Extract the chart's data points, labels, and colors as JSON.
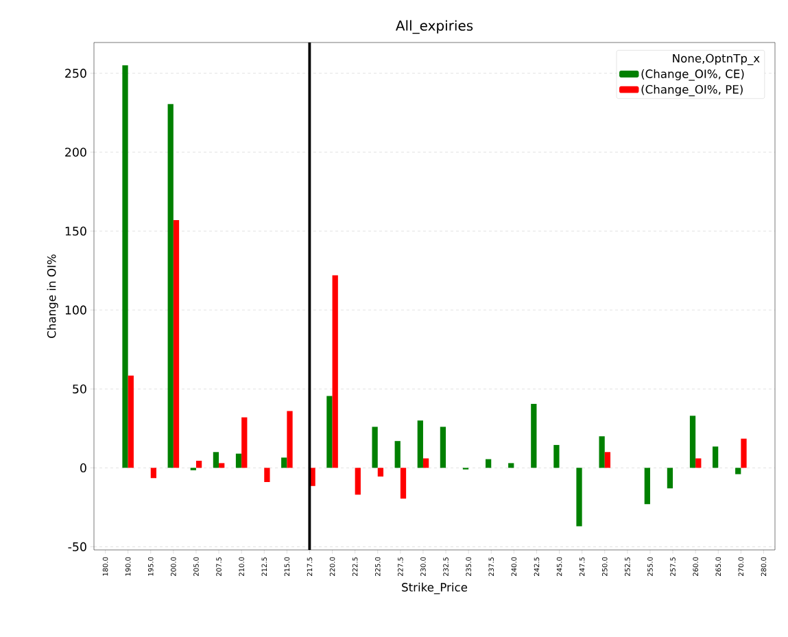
{
  "chart_data": {
    "type": "bar",
    "title": "All_expiries",
    "xlabel": "Strike_Price",
    "ylabel": "Change in OI%",
    "legend_title": "None,OptnTp_x",
    "categories": [
      "180.0",
      "190.0",
      "195.0",
      "200.0",
      "205.0",
      "207.5",
      "210.0",
      "212.5",
      "215.0",
      "217.5",
      "220.0",
      "222.5",
      "225.0",
      "227.5",
      "230.0",
      "232.5",
      "235.0",
      "237.5",
      "240.0",
      "242.5",
      "245.0",
      "247.5",
      "250.0",
      "252.5",
      "255.0",
      "257.5",
      "260.0",
      "265.0",
      "270.0",
      "280.0"
    ],
    "series": [
      {
        "name": "(Change_OI%, CE)",
        "color": "#008000",
        "values": [
          null,
          255,
          null,
          230.5,
          -1.5,
          10,
          9,
          null,
          6.5,
          null,
          45.5,
          null,
          26,
          17,
          30,
          26,
          -1,
          5.5,
          3,
          40.5,
          14.5,
          -37,
          20,
          null,
          -23,
          -13,
          33,
          13.5,
          -4,
          null
        ]
      },
      {
        "name": "(Change_OI%, PE)",
        "color": "#ff0000",
        "values": [
          null,
          58.5,
          -6.5,
          157,
          4.5,
          3,
          32,
          -9,
          36,
          -11.5,
          122,
          -17,
          -5.5,
          -19.5,
          6,
          null,
          null,
          null,
          null,
          null,
          null,
          null,
          10,
          null,
          null,
          null,
          6,
          null,
          18.5,
          null
        ]
      }
    ],
    "ylim": [
      -52,
      269.5
    ],
    "yticks": [
      -50,
      0,
      50,
      100,
      150,
      200,
      250
    ],
    "grid": "y",
    "legend": "top right",
    "ref_lines": [
      {
        "axis": "x",
        "value": "217.5",
        "color": "#000000"
      }
    ]
  }
}
